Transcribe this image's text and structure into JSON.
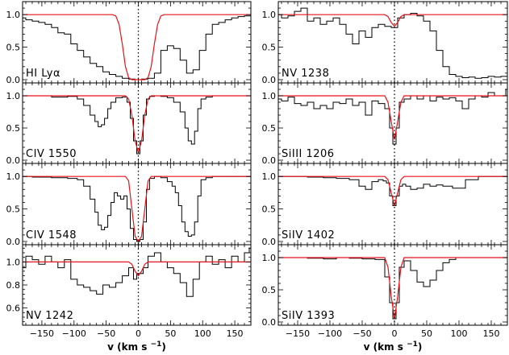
{
  "chart_data": [
    {
      "type": "line",
      "label": "HI  Lyα",
      "xlabel": "",
      "ylabel": "",
      "xlim": [
        -180,
        175
      ],
      "ylim": [
        -0.05,
        1.2
      ],
      "yticks": [
        {
          "v": 0,
          "t": "0.0"
        },
        {
          "v": 0.5,
          "t": "0.5"
        },
        {
          "v": 1.0,
          "t": "1.0"
        }
      ],
      "series": [
        {
          "x": [
            -180,
            -170,
            -160,
            -150,
            -140,
            -130,
            -120,
            -110,
            -100,
            -90,
            -80,
            -70,
            -60,
            -50,
            -40,
            -30,
            -20,
            -10,
            0,
            10,
            20,
            30,
            40,
            50,
            60,
            70,
            80,
            90,
            100,
            110,
            120,
            130,
            140,
            150,
            160,
            170,
            175
          ],
          "y": [
            0.95,
            0.92,
            0.9,
            0.88,
            0.85,
            0.8,
            0.72,
            0.7,
            0.55,
            0.45,
            0.35,
            0.25,
            0.2,
            0.12,
            0.08,
            0.05,
            0.02,
            0.01,
            0.0,
            0.01,
            0.02,
            0.1,
            0.45,
            0.52,
            0.48,
            0.3,
            0.1,
            0.15,
            0.45,
            0.7,
            0.85,
            0.88,
            0.92,
            0.95,
            0.97,
            0.98,
            0.98
          ]
        },
        {
          "x": [
            -180,
            -40,
            -35,
            -30,
            -25,
            -20,
            -15,
            -10,
            10,
            15,
            20,
            25,
            30,
            35,
            40,
            175
          ],
          "y": [
            1,
            1,
            0.98,
            0.85,
            0.55,
            0.2,
            0.03,
            0,
            0,
            0.03,
            0.2,
            0.55,
            0.85,
            0.98,
            1,
            1
          ]
        }
      ]
    },
    {
      "type": "line",
      "label": "NV  1238",
      "xlabel": "",
      "ylabel": "",
      "xlim": [
        -180,
        175
      ],
      "ylim": [
        -0.05,
        1.2
      ],
      "yticks": [
        {
          "v": 0,
          "t": "0.0"
        },
        {
          "v": 0.5,
          "t": "0.5"
        },
        {
          "v": 1.0,
          "t": "1.0"
        }
      ],
      "series": [
        {
          "x": [
            -180,
            -170,
            -160,
            -150,
            -140,
            -130,
            -120,
            -110,
            -100,
            -90,
            -80,
            -70,
            -60,
            -50,
            -40,
            -30,
            -20,
            -10,
            0,
            10,
            20,
            30,
            40,
            50,
            60,
            70,
            80,
            90,
            100,
            110,
            120,
            130,
            140,
            150,
            160,
            170,
            175
          ],
          "y": [
            1.0,
            0.95,
            0.98,
            1.05,
            1.1,
            0.9,
            0.95,
            0.85,
            0.9,
            0.95,
            0.85,
            0.7,
            0.55,
            0.75,
            0.65,
            0.8,
            0.85,
            0.82,
            0.8,
            0.95,
            1.0,
            1.02,
            0.98,
            0.9,
            0.75,
            0.45,
            0.2,
            0.08,
            0.05,
            0.03,
            0.04,
            0.02,
            0.03,
            0.05,
            0.04,
            0.05,
            0.05
          ]
        },
        {
          "x": [
            -180,
            -15,
            -10,
            -5,
            0,
            5,
            10,
            15,
            175
          ],
          "y": [
            1,
            1,
            0.97,
            0.88,
            0.82,
            0.88,
            0.97,
            1,
            1
          ]
        }
      ]
    },
    {
      "type": "line",
      "label": "CIV  1550",
      "xlabel": "",
      "ylabel": "",
      "xlim": [
        -180,
        175
      ],
      "ylim": [
        -0.05,
        1.2
      ],
      "yticks": [
        {
          "v": 0,
          "t": "0.0"
        },
        {
          "v": 0.5,
          "t": "0.5"
        },
        {
          "v": 1.0,
          "t": "1.0"
        }
      ],
      "series": [
        {
          "x": [
            -180,
            -150,
            -120,
            -100,
            -90,
            -80,
            -70,
            -65,
            -60,
            -55,
            -50,
            -45,
            -40,
            -30,
            -20,
            -15,
            -10,
            -5,
            0,
            5,
            10,
            15,
            20,
            30,
            40,
            50,
            60,
            70,
            75,
            80,
            85,
            90,
            95,
            100,
            110,
            120,
            150,
            175
          ],
          "y": [
            1.0,
            1.0,
            0.98,
            0.99,
            0.95,
            0.85,
            0.7,
            0.6,
            0.52,
            0.55,
            0.65,
            0.8,
            0.9,
            0.97,
            0.98,
            0.9,
            0.65,
            0.3,
            0.1,
            0.3,
            0.7,
            0.95,
            0.99,
            1.0,
            0.99,
            0.97,
            0.9,
            0.75,
            0.5,
            0.3,
            0.25,
            0.45,
            0.8,
            0.95,
            0.98,
            1.0,
            1.0,
            1.0
          ]
        },
        {
          "x": [
            -180,
            -20,
            -15,
            -10,
            -5,
            0,
            5,
            10,
            15,
            20,
            175
          ],
          "y": [
            1,
            1,
            0.95,
            0.7,
            0.3,
            0.12,
            0.3,
            0.7,
            0.95,
            1,
            1
          ]
        }
      ]
    },
    {
      "type": "line",
      "label": "SiIII  1206",
      "xlabel": "",
      "ylabel": "",
      "xlim": [
        -180,
        175
      ],
      "ylim": [
        -0.05,
        1.2
      ],
      "yticks": [
        {
          "v": 0,
          "t": "0.0"
        },
        {
          "v": 0.5,
          "t": "0.5"
        },
        {
          "v": 1.0,
          "t": "1.0"
        }
      ],
      "series": [
        {
          "x": [
            -180,
            -170,
            -160,
            -150,
            -140,
            -130,
            -120,
            -110,
            -100,
            -90,
            -80,
            -70,
            -60,
            -50,
            -40,
            -30,
            -20,
            -10,
            -5,
            0,
            5,
            10,
            20,
            30,
            40,
            50,
            60,
            70,
            80,
            90,
            100,
            110,
            120,
            130,
            140,
            150,
            160,
            170,
            175
          ],
          "y": [
            0.95,
            0.92,
            0.98,
            0.88,
            0.85,
            0.9,
            0.8,
            0.85,
            0.8,
            0.9,
            0.88,
            0.95,
            0.85,
            0.9,
            0.7,
            0.92,
            0.88,
            0.8,
            0.5,
            0.25,
            0.5,
            0.9,
            0.95,
            1.0,
            0.95,
            1.0,
            0.92,
            0.98,
            0.95,
            0.97,
            0.92,
            0.8,
            0.95,
            1.0,
            0.98,
            1.05,
            1.0,
            1.0,
            1.1
          ]
        },
        {
          "x": [
            -180,
            -15,
            -10,
            -5,
            0,
            5,
            10,
            15,
            175
          ],
          "y": [
            1,
            1,
            0.9,
            0.6,
            0.32,
            0.6,
            0.9,
            1,
            1
          ]
        }
      ]
    },
    {
      "type": "line",
      "label": "CIV  1548",
      "xlabel": "",
      "ylabel": "",
      "xlim": [
        -180,
        175
      ],
      "ylim": [
        -0.05,
        1.2
      ],
      "yticks": [
        {
          "v": 0,
          "t": "0.0"
        },
        {
          "v": 0.5,
          "t": "0.5"
        },
        {
          "v": 1.0,
          "t": "1.0"
        }
      ],
      "series": [
        {
          "x": [
            -180,
            -150,
            -120,
            -100,
            -90,
            -80,
            -70,
            -65,
            -60,
            -55,
            -50,
            -45,
            -40,
            -35,
            -30,
            -25,
            -20,
            -15,
            -10,
            -5,
            0,
            5,
            10,
            15,
            20,
            30,
            40,
            50,
            55,
            60,
            65,
            70,
            75,
            80,
            85,
            90,
            95,
            100,
            110,
            120,
            150,
            175
          ],
          "y": [
            1.0,
            0.99,
            0.98,
            0.97,
            0.95,
            0.85,
            0.65,
            0.45,
            0.25,
            0.18,
            0.22,
            0.4,
            0.6,
            0.75,
            0.7,
            0.65,
            0.7,
            0.5,
            0.2,
            0.03,
            0.0,
            0.03,
            0.3,
            0.8,
            0.97,
            1.0,
            0.98,
            0.92,
            0.85,
            0.75,
            0.55,
            0.3,
            0.15,
            0.08,
            0.1,
            0.3,
            0.7,
            0.95,
            0.98,
            1.0,
            1.0,
            1.0
          ]
        },
        {
          "x": [
            -180,
            -20,
            -15,
            -10,
            -5,
            0,
            5,
            10,
            15,
            20,
            175
          ],
          "y": [
            1,
            1,
            0.93,
            0.5,
            0.08,
            0,
            0.08,
            0.5,
            0.93,
            1,
            1
          ]
        }
      ]
    },
    {
      "type": "line",
      "label": "SiIV  1402",
      "xlabel": "",
      "ylabel": "",
      "xlim": [
        -180,
        175
      ],
      "ylim": [
        -0.05,
        1.2
      ],
      "yticks": [
        {
          "v": 0,
          "t": "0.0"
        },
        {
          "v": 0.5,
          "t": "0.5"
        },
        {
          "v": 1.0,
          "t": "1.0"
        }
      ],
      "series": [
        {
          "x": [
            -180,
            -150,
            -120,
            -100,
            -80,
            -60,
            -50,
            -40,
            -30,
            -20,
            -15,
            -10,
            -5,
            0,
            5,
            10,
            15,
            20,
            30,
            40,
            50,
            60,
            70,
            80,
            100,
            120,
            140,
            160,
            175
          ],
          "y": [
            1.0,
            1.0,
            0.99,
            0.98,
            0.97,
            0.95,
            0.85,
            0.8,
            0.92,
            0.95,
            0.93,
            0.9,
            0.7,
            0.55,
            0.7,
            0.85,
            0.88,
            0.85,
            0.8,
            0.82,
            0.88,
            0.85,
            0.87,
            0.85,
            0.82,
            0.95,
            1.0,
            1.0,
            1.0
          ]
        },
        {
          "x": [
            -180,
            -15,
            -10,
            -5,
            0,
            5,
            10,
            15,
            175
          ],
          "y": [
            1,
            1,
            0.95,
            0.75,
            0.55,
            0.75,
            0.95,
            1,
            1
          ]
        }
      ]
    },
    {
      "type": "line",
      "label": "NV  1242",
      "xlabel": "",
      "ylabel": "",
      "xlim": [
        -180,
        175
      ],
      "ylim": [
        0.45,
        1.15
      ],
      "yticks": [
        {
          "v": 0.6,
          "t": "0.6"
        },
        {
          "v": 0.8,
          "t": "0.8"
        },
        {
          "v": 1.0,
          "t": "1.0"
        }
      ],
      "series": [
        {
          "x": [
            -180,
            -170,
            -160,
            -150,
            -140,
            -130,
            -120,
            -110,
            -100,
            -90,
            -80,
            -70,
            -60,
            -50,
            -40,
            -30,
            -20,
            -10,
            -5,
            0,
            5,
            10,
            20,
            30,
            40,
            50,
            60,
            70,
            80,
            90,
            100,
            110,
            120,
            130,
            140,
            150,
            160,
            170,
            175
          ],
          "y": [
            0.95,
            1.05,
            1.02,
            0.98,
            1.05,
            1.0,
            0.95,
            1.02,
            0.85,
            0.8,
            0.78,
            0.75,
            0.72,
            0.8,
            0.78,
            0.82,
            0.88,
            0.95,
            0.85,
            0.9,
            0.9,
            0.95,
            1.05,
            1.08,
            1.0,
            0.95,
            0.9,
            0.82,
            0.7,
            0.85,
            1.0,
            1.05,
            0.98,
            1.02,
            0.95,
            1.05,
            1.0,
            1.08,
            1.12
          ]
        },
        {
          "x": [
            -180,
            -15,
            -10,
            -5,
            0,
            5,
            10,
            15,
            175
          ],
          "y": [
            1,
            1,
            0.98,
            0.92,
            0.88,
            0.92,
            0.98,
            1,
            1
          ]
        }
      ]
    },
    {
      "type": "line",
      "label": "SiIV  1393",
      "xlabel": "",
      "ylabel": "",
      "xlim": [
        -180,
        175
      ],
      "ylim": [
        -0.05,
        1.2
      ],
      "yticks": [
        {
          "v": 0,
          "t": "0.0"
        },
        {
          "v": 0.5,
          "t": "0.5"
        },
        {
          "v": 1.0,
          "t": "1.0"
        }
      ],
      "series": [
        {
          "x": [
            -180,
            -150,
            -120,
            -100,
            -80,
            -60,
            -40,
            -20,
            -10,
            -5,
            0,
            5,
            10,
            20,
            30,
            40,
            50,
            60,
            70,
            80,
            90,
            100,
            120,
            150,
            175
          ],
          "y": [
            1.0,
            1.0,
            0.99,
            0.98,
            1.0,
            0.99,
            0.98,
            0.97,
            0.7,
            0.3,
            0.05,
            0.3,
            0.85,
            0.95,
            0.8,
            0.62,
            0.55,
            0.65,
            0.8,
            0.92,
            0.97,
            1.0,
            1.0,
            1.0,
            1.0
          ]
        },
        {
          "x": [
            -180,
            -15,
            -10,
            -5,
            0,
            5,
            10,
            15,
            175
          ],
          "y": [
            1,
            1,
            0.85,
            0.4,
            0.05,
            0.4,
            0.85,
            1,
            1
          ]
        }
      ]
    }
  ],
  "xaxis": {
    "label": "v  (km  s",
    "label_sup": "−1",
    "label_close": ")",
    "ticks": [
      {
        "v": -150,
        "t": "−150"
      },
      {
        "v": -100,
        "t": "−100"
      },
      {
        "v": -50,
        "t": "−50"
      },
      {
        "v": 0,
        "t": "0"
      },
      {
        "v": 50,
        "t": "50"
      },
      {
        "v": 100,
        "t": "100"
      },
      {
        "v": 150,
        "t": "150"
      }
    ]
  },
  "colors": {
    "data": "#000000",
    "fit": "#e8121a",
    "axis": "#000000"
  }
}
